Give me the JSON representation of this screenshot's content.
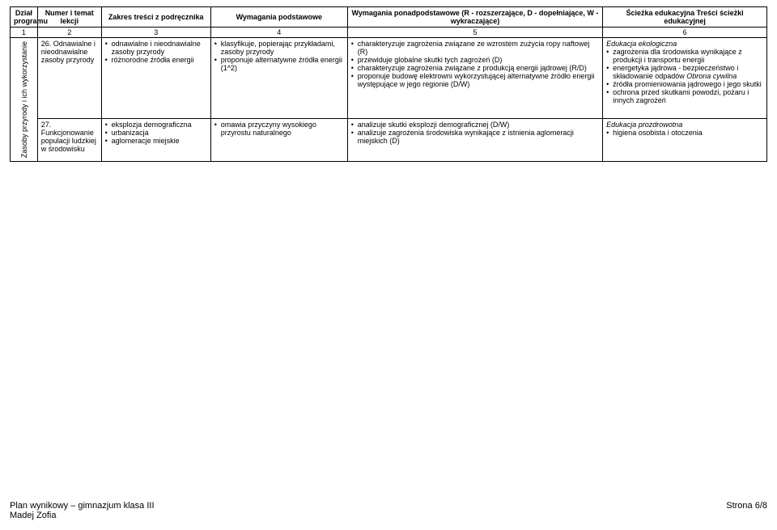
{
  "header": {
    "col1": "Dział programu",
    "col2": "Numer i temat lekcji",
    "col3": "Zakres treści z podręcznika",
    "col4": "Wymagania podstawowe",
    "col5": "Wymagania ponadpodstawowe (R - rozszerzające, D - dopełniające, W - wykraczające)",
    "col6": "Ścieżka edukacyjna Treści ścieżki edukacyjnej"
  },
  "nums": {
    "n1": "1",
    "n2": "2",
    "n3": "3",
    "n4": "4",
    "n5": "5",
    "n6": "6"
  },
  "dzial": "Zasoby przyrody i ich wykorzystanie",
  "rows": [
    {
      "numer": "26. Odnawialne i nieodnawialne zasoby przyrody",
      "zakres": [
        "odnawialne i nieodnawialne zasoby przyrody",
        "różnorodne źródła energii"
      ],
      "podst": [
        "klasyfikuje, popierając przykładami, zasoby przyrody",
        "proponuje alternatywne źródła energii (1^2)"
      ],
      "ponad": [
        "charakteryzuje zagrożenia związane ze wzrostem zużycia ropy naftowej (R)",
        "przewiduje globalne skutki tych zagrożeń (D)",
        "charakteryzuje zagrożenia związane z produkcją energii jądrowej (R/D)",
        "proponuje budowę elektrowni wykorzystującej alternatywne źródło energii występujące w jego regionie (D/W)"
      ],
      "sciezka_title": "Edukacja ekologiczna",
      "sciezka": [
        "zagrożenia dla środowiska wynikające z produkcji i transportu energii",
        "energetyka jądrowa - bezpieczeństwo i składowanie odpadów Obrona cywilna",
        "źródła promieniowania jądrowego i jego skutki",
        "ochrona przed skutkami powodzi, pożaru i innych zagrożeń"
      ],
      "sciezka_italic_idx": 1
    },
    {
      "numer": "27. Funkcjonowanie populacji ludzkiej w środowisku",
      "zakres": [
        "eksplozja demograficzna",
        "urbanizacja",
        "aglomeracje miejskie"
      ],
      "podst": [
        "omawia przyczyny wysokiego przyrostu naturalnego"
      ],
      "ponad": [
        "analizuje skutki eksplozji demograficznej (D/W)",
        "analizuje zagrożenia środowiska wynikające z istnienia aglomeracji miejskich (D)"
      ],
      "sciezka_title": "Edukacja prozdrowotna",
      "sciezka": [
        "higiena osobista i otoczenia"
      ],
      "sciezka_italic_idx": -1
    }
  ],
  "footer": {
    "left1": "Plan wynikowy – gimnazjum klasa III",
    "left2": "Madej Zofia",
    "right": "Strona 6/8"
  }
}
